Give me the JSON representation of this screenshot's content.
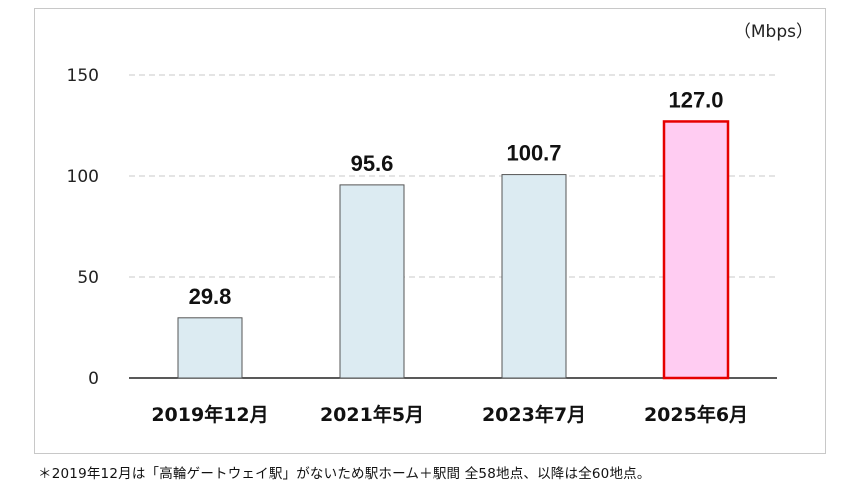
{
  "chart_data": {
    "type": "bar",
    "categories": [
      "2019年12月",
      "2021年5月",
      "2023年7月",
      "2025年6月"
    ],
    "values": [
      29.8,
      95.6,
      100.7,
      127.0
    ],
    "value_labels": [
      "29.8",
      "95.6",
      "100.7",
      "127.0"
    ],
    "unit": "（Mbps）",
    "ylim": [
      0,
      150
    ],
    "yticks": [
      0,
      50,
      100,
      150
    ],
    "grid": true,
    "legend": "none",
    "colors": {
      "bar_fill": "#dcebf2",
      "bar_stroke": "#555555",
      "highlight_fill": "#ffccf2",
      "highlight_stroke": "#e60000",
      "grid": "#c8c8c8",
      "axis": "#222222"
    },
    "highlight_index": 3
  },
  "footnote": "＊2019年12月は「高輪ゲートウェイ駅」がないため駅ホーム＋駅間 全58地点、以降は全60地点。"
}
